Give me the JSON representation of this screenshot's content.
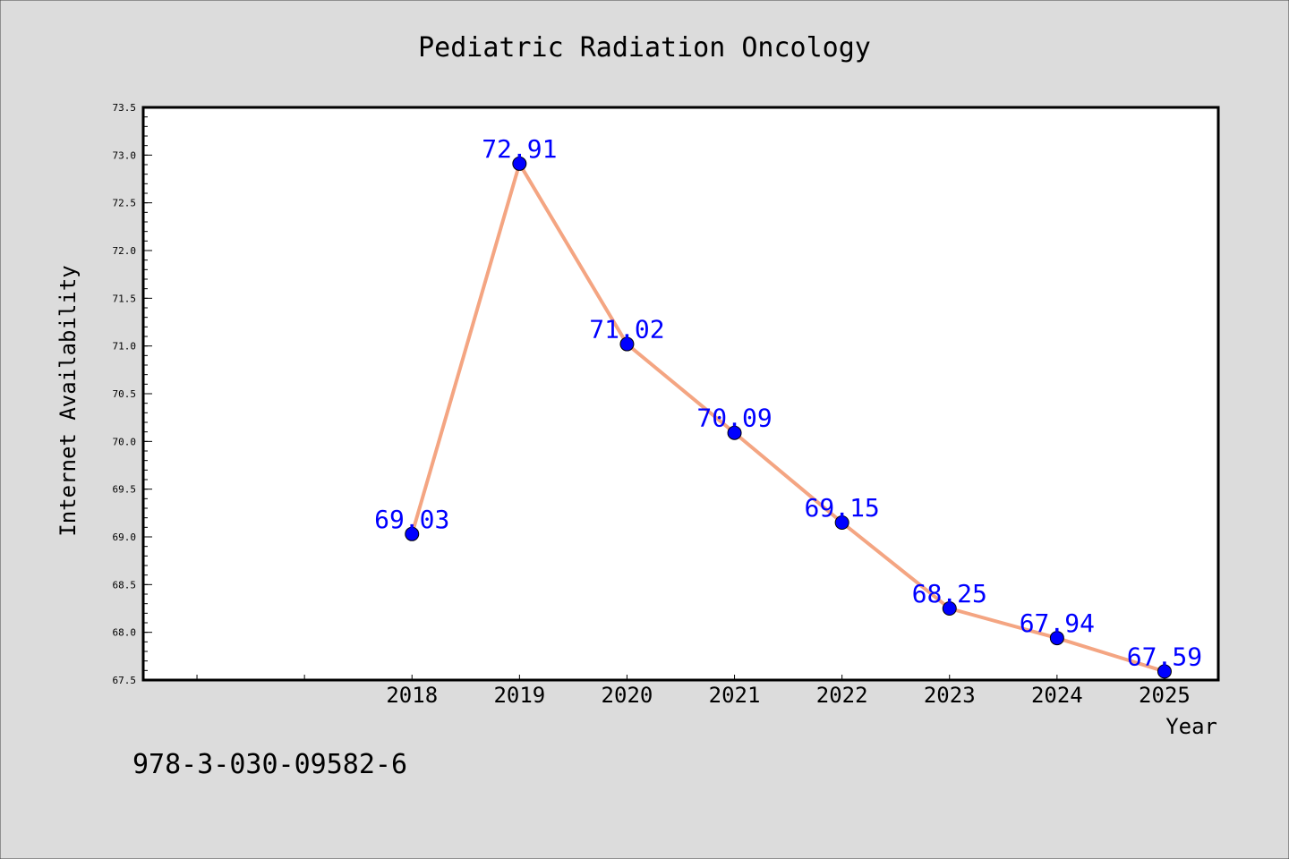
{
  "chart_data": {
    "type": "line",
    "title": "Pediatric Radiation Oncology",
    "xlabel": "Year",
    "ylabel": "Internet Availability",
    "x": [
      2018,
      2019,
      2020,
      2021,
      2022,
      2023,
      2024,
      2025
    ],
    "x_tick_labels": [
      "2018",
      "2019",
      "2020",
      "2021",
      "2022",
      "2023",
      "2024",
      "2025"
    ],
    "x_range": [
      2015.5,
      2025.5
    ],
    "series": [
      {
        "values": [
          69.03,
          72.91,
          71.02,
          70.09,
          69.15,
          68.25,
          67.94,
          67.59
        ],
        "point_labels": [
          "69.03",
          "72.91",
          "71.02",
          "70.09",
          "69.15",
          "68.25",
          "67.94",
          "67.59"
        ],
        "line_color": "#f4a582",
        "marker_color": "#0000ff"
      }
    ],
    "ylim": [
      67.5,
      73.5
    ],
    "y_ticks": [
      67.5,
      68.0,
      68.5,
      69.0,
      69.5,
      70.0,
      70.5,
      71.0,
      71.5,
      72.0,
      72.5,
      73.0,
      73.5
    ],
    "y_tick_labels": [
      "67.5",
      "68.0",
      "68.5",
      "69.0",
      "69.5",
      "70.0",
      "70.5",
      "71.0",
      "71.5",
      "72.0",
      "72.5",
      "73.0",
      "73.5"
    ],
    "grid": false,
    "legend": "none"
  },
  "footer_text": "978-3-030-09582-6",
  "colors": {
    "background": "#dcdcdc",
    "plot_background": "#ffffff",
    "line": "#f4a582",
    "marker": "#0000ff",
    "point_label": "#0000ff"
  }
}
